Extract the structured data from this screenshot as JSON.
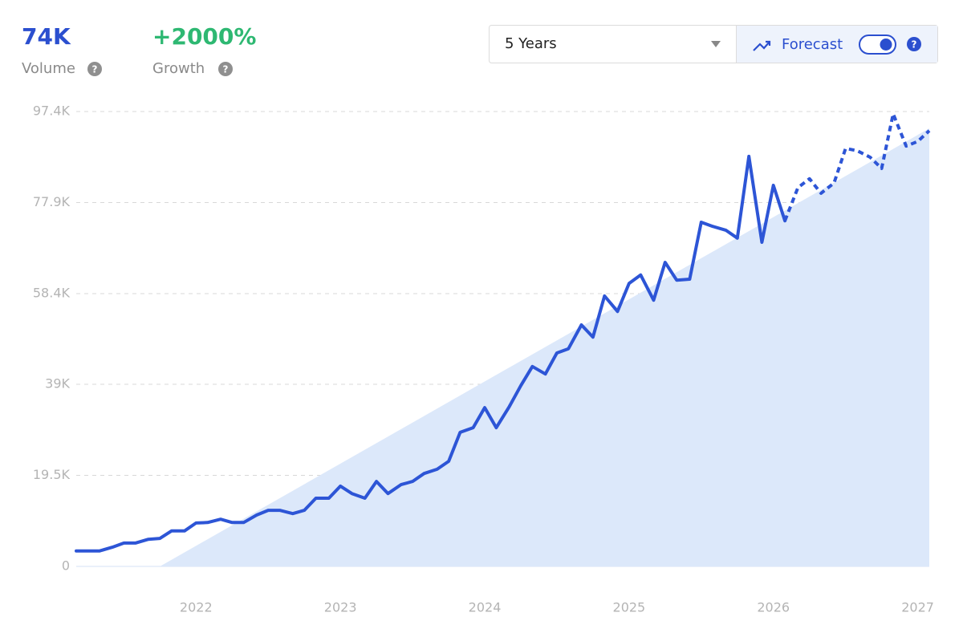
{
  "header": {
    "volume": "74K",
    "volume_label": "Volume",
    "growth": "+2000%",
    "growth_label": "Growth"
  },
  "controls": {
    "range": "5 Years",
    "forecast": "Forecast"
  },
  "chart_data": {
    "type": "line",
    "xlim": [
      2021.17,
      2027.08
    ],
    "xticks": [
      2022,
      2023,
      2024,
      2025,
      2026,
      2027
    ],
    "ylim": [
      0,
      97400
    ],
    "yticks": [
      0,
      {
        "value": 19500,
        "label": "19.5K"
      },
      {
        "value": 39000,
        "label": "39K"
      },
      {
        "value": 58400,
        "label": "58.4K"
      },
      {
        "value": 77900,
        "label": "77.9K"
      },
      {
        "value": 97400,
        "label": "97.4K"
      }
    ],
    "grid": true,
    "series": [
      {
        "kind": "area",
        "color": "#dce8fa",
        "x": [
          2021.75,
          2027.08
        ],
        "values": [
          0,
          93800
        ]
      },
      {
        "kind": "line",
        "color": "#2d55d6",
        "dashed": false,
        "x": [
          2021.17,
          2021.25,
          2021.33,
          2021.42,
          2021.5,
          2021.58,
          2021.67,
          2021.75,
          2021.83,
          2021.92,
          2022,
          2022.08,
          2022.17,
          2022.25,
          2022.33,
          2022.42,
          2022.5,
          2022.58,
          2022.67,
          2022.75,
          2022.83,
          2022.92,
          2023,
          2023.08,
          2023.17,
          2023.25,
          2023.33,
          2023.42,
          2023.5,
          2023.58,
          2023.67,
          2023.75,
          2023.83,
          2023.92,
          2024,
          2024.08,
          2024.17,
          2024.25,
          2024.33,
          2024.42,
          2024.5,
          2024.58,
          2024.67,
          2024.75,
          2024.83,
          2024.92,
          2025,
          2025.08,
          2025.17,
          2025.25,
          2025.33,
          2025.42,
          2025.5,
          2025.58,
          2025.67,
          2025.75,
          2025.83,
          2025.92,
          2026,
          2026.08
        ],
        "values": [
          3300,
          3300,
          3300,
          4100,
          5000,
          5000,
          5800,
          6000,
          7600,
          7600,
          9300,
          9400,
          10100,
          9400,
          9400,
          11000,
          12000,
          12000,
          11300,
          12000,
          14600,
          14600,
          17200,
          15600,
          14600,
          18200,
          15600,
          17500,
          18200,
          19900,
          20800,
          22500,
          28700,
          29700,
          34000,
          29700,
          34200,
          38700,
          42800,
          41200,
          45700,
          46600,
          51700,
          49100,
          57900,
          54600,
          60600,
          62400,
          57000,
          65100,
          61300,
          61500,
          73700,
          72800,
          72000,
          70300,
          87800,
          69400,
          81600,
          74000
        ]
      },
      {
        "kind": "line",
        "color": "#2d55d6",
        "dashed": true,
        "x": [
          2026.08,
          2026.17,
          2026.25,
          2026.33,
          2026.42,
          2026.5,
          2026.58,
          2026.67,
          2026.75,
          2026.83,
          2026.92,
          2027,
          2027.08
        ],
        "values": [
          74000,
          81100,
          83000,
          79900,
          82100,
          89500,
          89000,
          87600,
          85200,
          96900,
          90000,
          91000,
          93300
        ]
      }
    ]
  }
}
